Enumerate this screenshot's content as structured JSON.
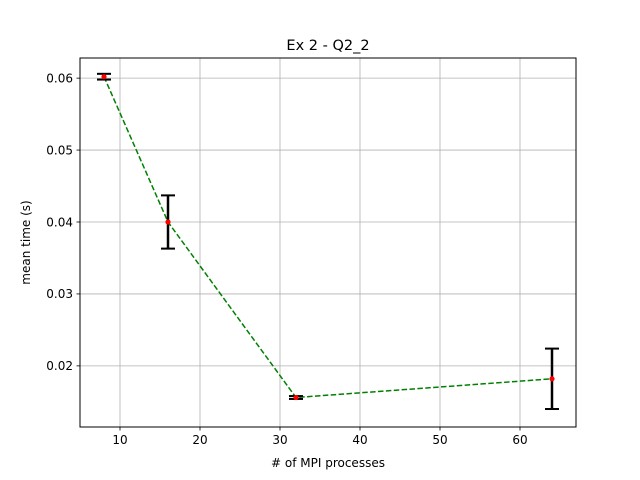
{
  "chart_data": {
    "type": "line",
    "title": "Ex 2 - Q2_2",
    "xlabel": "# of MPI processes",
    "ylabel": "mean time (s)",
    "xlim": [
      5,
      67
    ],
    "ylim": [
      0.0115,
      0.0628
    ],
    "xticks": [
      10,
      20,
      30,
      40,
      50,
      60
    ],
    "yticks": [
      0.02,
      0.03,
      0.04,
      0.05,
      0.06
    ],
    "xtick_labels": [
      "10",
      "20",
      "30",
      "40",
      "50",
      "60"
    ],
    "ytick_labels": [
      "0.02",
      "0.03",
      "0.04",
      "0.05",
      "0.06"
    ],
    "grid": true,
    "series": [
      {
        "x": [
          8,
          16,
          32,
          64
        ],
        "y": [
          0.0602,
          0.04,
          0.0156,
          0.0182
        ],
        "yerr": [
          0.0004,
          0.0037,
          0.0002,
          0.0042
        ],
        "line_color": "#008000",
        "line_style": "dashed",
        "marker_color": "#ff0000",
        "errorbar_color": "#000000"
      }
    ]
  }
}
